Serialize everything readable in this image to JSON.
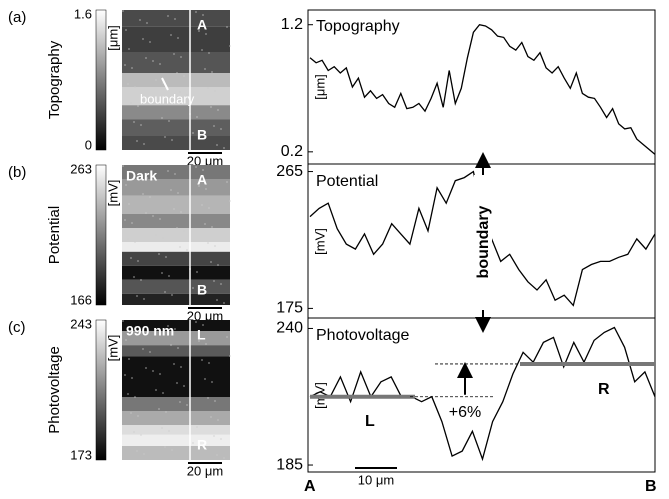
{
  "panels": [
    {
      "label": "(a)",
      "name": "Topography",
      "unit": "[μm]",
      "cmax": 1.6,
      "cmin": 0,
      "top_mark": "A",
      "bottom_mark": "B",
      "note": "boundary",
      "scale": "20 μm"
    },
    {
      "label": "(b)",
      "name": "Potential",
      "unit": "[mV]",
      "cmax": 263,
      "cmin": 166,
      "top_mark": "A",
      "bottom_mark": "B",
      "note": "Dark",
      "scale": "20 μm"
    },
    {
      "label": "(c)",
      "name": "Photovoltage",
      "unit": "[mV]",
      "cmax": 243,
      "cmin": 173,
      "top_mark": "L",
      "bottom_mark": "R",
      "note": "990 nm",
      "scale": "20 μm"
    }
  ],
  "boundary_label": "boundary",
  "start_label": "A",
  "end_label": "B",
  "scale_label": "10 μm",
  "chart_data": [
    {
      "type": "line",
      "title": "Topography",
      "ylabel": "[μm]",
      "color": "#000000",
      "values": [
        0.94,
        0.9,
        0.92,
        0.84,
        0.87,
        0.82,
        0.86,
        0.71,
        0.78,
        0.63,
        0.68,
        0.62,
        0.65,
        0.58,
        0.55,
        0.66,
        0.54,
        0.55,
        0.58,
        0.52,
        0.62,
        0.74,
        0.55,
        0.84,
        0.58,
        0.7,
        0.94,
        1.14,
        1.2,
        1.19,
        1.16,
        1.11,
        1.1,
        1.03,
        1.0,
        1.06,
        0.95,
        0.92,
        0.98,
        0.86,
        0.82,
        0.87,
        0.78,
        0.7,
        0.82,
        0.66,
        0.63,
        0.62,
        0.55,
        0.47,
        0.54,
        0.42,
        0.38,
        0.39,
        0.3,
        0.26,
        0.22,
        0.18
      ],
      "ylim": [
        0.12,
        1.3
      ],
      "yticks": [
        0.2,
        1.2
      ]
    },
    {
      "type": "line",
      "title": "Potential",
      "ylabel": "[mV]",
      "color": "#000000",
      "values": [
        235.4,
        240.8,
        244.2,
        227.4,
        217.3,
        214.0,
        224.0,
        210.6,
        217.3,
        230.7,
        224.0,
        217.3,
        240.8,
        226.0,
        254.3,
        244.2,
        259.0,
        261.0,
        265.0,
        237.5,
        220.7,
        205.9,
        210.6,
        200.5,
        192.5,
        187.1,
        193.8,
        180.4,
        183.7,
        177.0,
        200.5,
        203.9,
        205.9,
        205.9,
        208.6,
        210.6,
        220.7,
        214.0,
        224.0
      ],
      "ylim": [
        170,
        268
      ],
      "yticks": [
        175,
        265
      ]
    },
    {
      "type": "line",
      "title": "Photovoltage",
      "ylabel": "[mV]",
      "color": "#000000",
      "values": [
        212.5,
        214.5,
        212.5,
        220.5,
        210.5,
        222.5,
        212.5,
        218.5,
        220.5,
        212.5,
        212.5,
        210.5,
        212.5,
        202.5,
        188.6,
        190.6,
        198.6,
        187.4,
        202.5,
        210.5,
        221.7,
        230.4,
        226.4,
        234.4,
        236.4,
        224.5,
        234.4,
        226.4,
        235.2,
        238.4,
        240.4,
        232.4,
        218.5,
        222.5,
        212.5
      ],
      "ylim": [
        183,
        243
      ],
      "yticks": [
        185,
        240
      ],
      "levels": [
        {
          "name": "L",
          "value": 212.5
        },
        {
          "name": "R",
          "value": 225.7
        }
      ],
      "annotation": "+6%"
    }
  ]
}
